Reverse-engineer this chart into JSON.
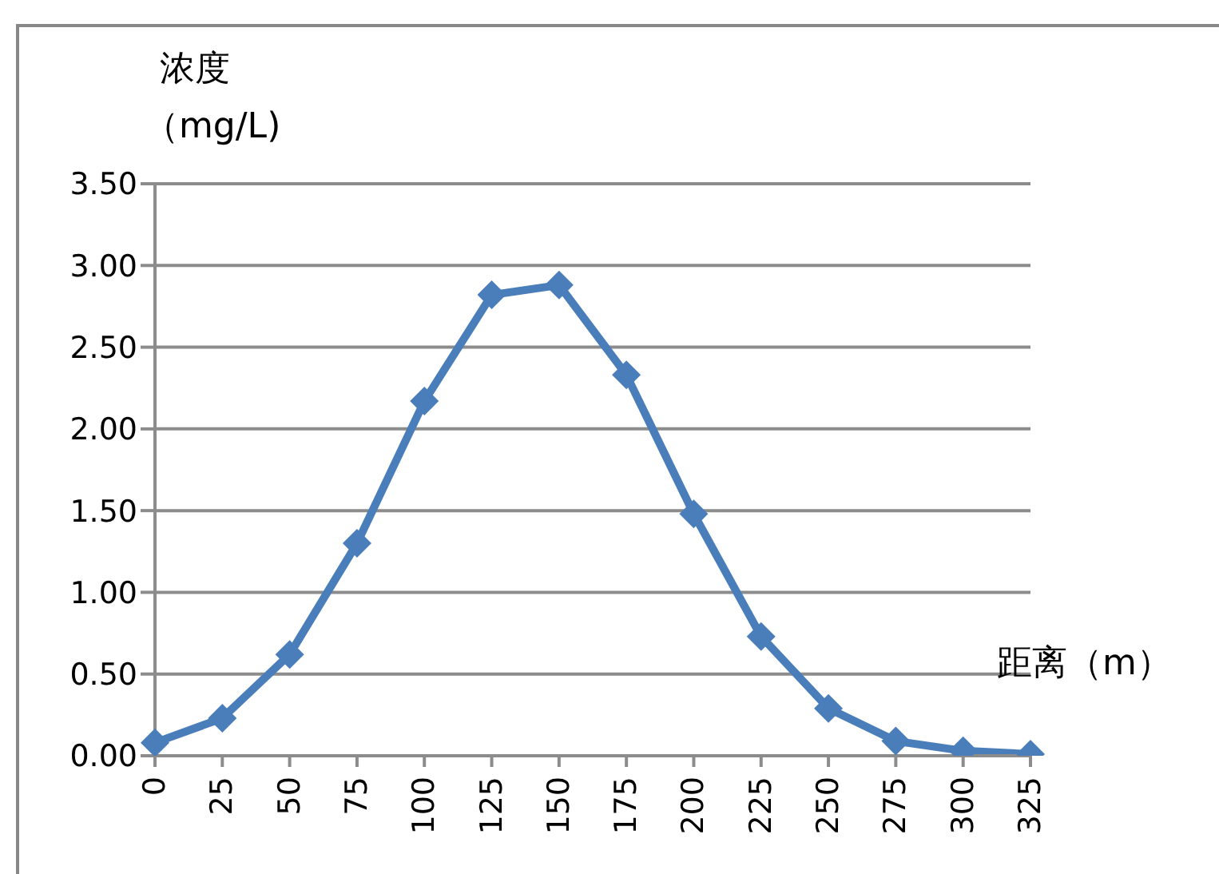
{
  "chart_data": {
    "type": "line",
    "xlabel": "距离（m）",
    "ylabel": "浓度（mg/L)",
    "categories": [
      "0",
      "25",
      "50",
      "75",
      "100",
      "125",
      "150",
      "175",
      "200",
      "225",
      "250",
      "275",
      "300",
      "325"
    ],
    "series": [
      {
        "color": "#4a7ebb",
        "values": [
          0.08,
          0.23,
          0.62,
          1.3,
          2.17,
          2.82,
          2.88,
          2.33,
          1.48,
          0.73,
          0.29,
          0.09,
          0.03,
          0.01
        ]
      }
    ],
    "ylim": [
      0,
      3.5
    ],
    "yticks": [
      {
        "value": 0,
        "label": "0.00"
      },
      {
        "value": 0.5,
        "label": "0.50"
      },
      {
        "value": 1,
        "label": "1.00"
      },
      {
        "value": 1.5,
        "label": "1.50"
      },
      {
        "value": 2,
        "label": "2.00"
      },
      {
        "value": 2.5,
        "label": "2.50"
      },
      {
        "value": 3,
        "label": "3.00"
      },
      {
        "value": 3.5,
        "label": "3.50"
      }
    ],
    "grid": "y",
    "marker": "diamond",
    "line_style": "solid",
    "legend": false
  }
}
